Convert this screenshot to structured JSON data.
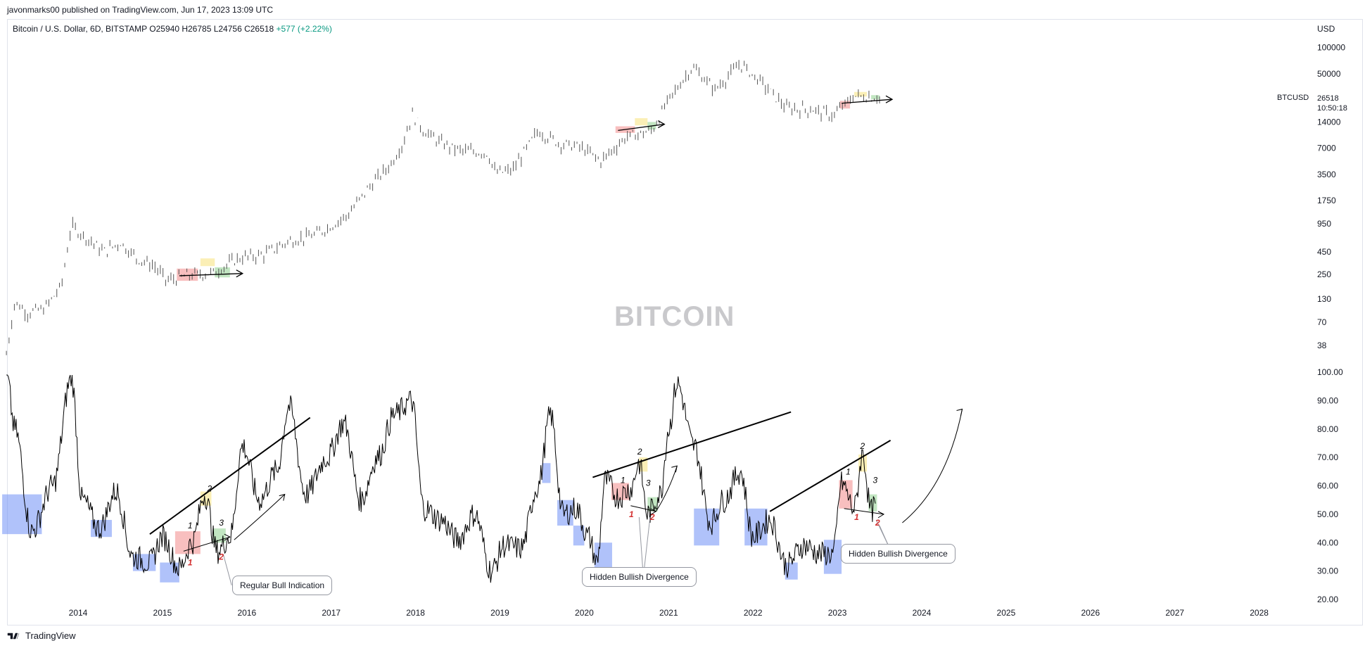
{
  "publisher": "javonmarks00 published on TradingView.com, Jun 17, 2023 13:09 UTC",
  "series_title": {
    "name": "Bitcoin / U.S. Dollar, 6D, BITSTAMP",
    "ohlc": "O25940 H26785 L24756 C26518",
    "change": "+577 (+2.22%)"
  },
  "unit": "USD",
  "ticker": "BTCUSD",
  "last_price": "26518",
  "countdown": "10:50:18",
  "watermark": "BITCOIN",
  "footer_brand": "TradingView",
  "colors": {
    "price_bar": "#555555",
    "oscillator": "#000000",
    "box_blue": "#6f8ff5",
    "box_red": "#f28b8b",
    "box_yellow": "#f7e27a",
    "box_green": "#8fd18f",
    "label_red": "#d32f2f"
  },
  "annotations": {
    "regular_bull": "Regular Bull Indication",
    "hidden_1": "Hidden Bullish Divergence",
    "hidden_2": "Hidden Bullish Divergence"
  },
  "chart_data": [
    {
      "type": "bar",
      "title": "Bitcoin / U.S. Dollar, 6D, BITSTAMP",
      "scale": "log",
      "y_ticks": [
        38,
        70,
        130,
        250,
        450,
        950,
        1750,
        3500,
        7000,
        14000,
        50000,
        100000
      ],
      "x_ticks": [
        "2014",
        "2015",
        "2016",
        "2017",
        "2018",
        "2019",
        "2020",
        "2021",
        "2022",
        "2023",
        "2024",
        "2025",
        "2026",
        "2027",
        "2028"
      ],
      "series": [
        {
          "x": [
            2013.15,
            2013.25,
            2013.4,
            2013.6,
            2013.8,
            2013.92,
            2014.0,
            2014.15,
            2014.3,
            2014.5,
            2014.7,
            2014.9,
            2015.05,
            2015.3,
            2015.6,
            2015.9,
            2016.2,
            2016.5,
            2016.8,
            2017.0,
            2017.2,
            2017.45,
            2017.7,
            2017.85,
            2017.96,
            2018.1,
            2018.3,
            2018.55,
            2018.85,
            2018.95,
            2019.15,
            2019.45,
            2019.7,
            2019.95,
            2020.2,
            2020.5,
            2020.8,
            2021.0,
            2021.28,
            2021.55,
            2021.85,
            2022.1,
            2022.4,
            2022.7,
            2022.95,
            2023.2,
            2023.5
          ],
          "y": [
            30,
            120,
            90,
            100,
            180,
            900,
            780,
            600,
            450,
            580,
            380,
            310,
            210,
            240,
            260,
            380,
            420,
            600,
            700,
            900,
            1200,
            2500,
            4500,
            8000,
            17000,
            11000,
            8000,
            6500,
            6200,
            3600,
            3900,
            11000,
            8000,
            7200,
            5000,
            9500,
            11000,
            25000,
            60000,
            33000,
            65000,
            40000,
            20000,
            19500,
            16500,
            28000,
            26518
          ]
        }
      ]
    },
    {
      "type": "line",
      "title": "",
      "ylim": [
        20,
        100
      ],
      "y_ticks": [
        "100.00",
        "90.00",
        "80.00",
        "70.00",
        "60.00",
        "50.00",
        "40.00",
        "30.00",
        "20.00"
      ],
      "series": [
        {
          "x": [
            2013.15,
            2013.25,
            2013.45,
            2013.7,
            2013.92,
            2014.05,
            2014.25,
            2014.45,
            2014.65,
            2014.85,
            2015.0,
            2015.2,
            2015.35,
            2015.5,
            2015.65,
            2015.8,
            2015.95,
            2016.15,
            2016.35,
            2016.5,
            2016.7,
            2016.95,
            2017.15,
            2017.35,
            2017.55,
            2017.75,
            2017.95,
            2018.1,
            2018.3,
            2018.5,
            2018.7,
            2018.9,
            2019.05,
            2019.25,
            2019.45,
            2019.6,
            2019.75,
            2019.9,
            2020.05,
            2020.15,
            2020.25,
            2020.4,
            2020.55,
            2020.65,
            2020.75,
            2020.9,
            2021.0,
            2021.1,
            2021.3,
            2021.5,
            2021.65,
            2021.85,
            2022.0,
            2022.2,
            2022.4,
            2022.6,
            2022.8,
            2022.95,
            2023.05,
            2023.2,
            2023.3,
            2023.4,
            2023.45
          ],
          "y": [
            99,
            80,
            44,
            60,
            98,
            55,
            45,
            58,
            35,
            33,
            42,
            31,
            40,
            57,
            37,
            42,
            74,
            55,
            65,
            88,
            57,
            70,
            82,
            55,
            70,
            85,
            90,
            52,
            48,
            41,
            50,
            30,
            39,
            38,
            60,
            85,
            50,
            52,
            42,
            33,
            62,
            56,
            59,
            68,
            50,
            57,
            80,
            96,
            74,
            47,
            55,
            65,
            42,
            48,
            32,
            39,
            36,
            36,
            61,
            52,
            71,
            51,
            53
          ]
        }
      ]
    }
  ]
}
